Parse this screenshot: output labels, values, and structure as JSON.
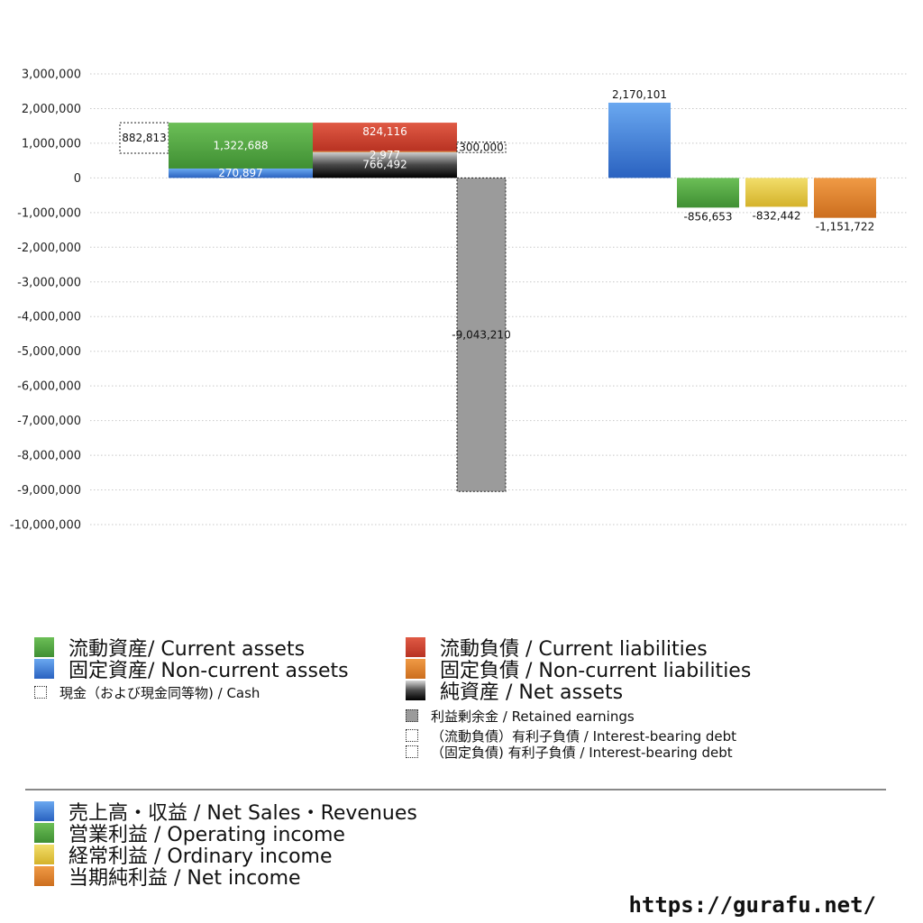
{
  "chart_data": {
    "type": "bar",
    "title": "",
    "ylim": [
      -10000000,
      3000000
    ],
    "y_ticks": [
      3000000,
      2000000,
      1000000,
      0,
      -1000000,
      -2000000,
      -3000000,
      -4000000,
      -5000000,
      -6000000,
      -7000000,
      -8000000,
      -9000000,
      -10000000
    ],
    "y_tick_labels": [
      "3,000,000",
      "2,000,000",
      "1,000,000",
      "0",
      "-1,000,000",
      "-2,000,000",
      "-3,000,000",
      "-4,000,000",
      "-5,000,000",
      "-6,000,000",
      "-7,000,000",
      "-8,000,000",
      "-9,000,000",
      "-10,000,000"
    ],
    "grid": true,
    "balance_sheet": {
      "assets": [
        {
          "key": "noncurrent_assets",
          "value": 270897,
          "label": "270,897"
        },
        {
          "key": "current_assets",
          "value": 1322688,
          "label": "1,322,688"
        }
      ],
      "cash": {
        "value": 882813,
        "label": "882,813"
      },
      "liabilities_and_equity": [
        {
          "key": "net_assets",
          "value": 766492,
          "label": "766,492"
        },
        {
          "key": "noncurrent_liabilities",
          "value": 2977,
          "label": "2,977"
        },
        {
          "key": "current_liabilities",
          "value": 824116,
          "label": "824,116"
        }
      ],
      "interest_bearing_debt": {
        "value": 300000,
        "label": "300,000"
      },
      "retained_earnings": {
        "value": -9043210,
        "label": "-9,043,210"
      }
    },
    "income_statement": [
      {
        "key": "net_sales",
        "value": 2170101,
        "label": "2,170,101"
      },
      {
        "key": "operating_income",
        "value": -856653,
        "label": "-856,653"
      },
      {
        "key": "ordinary_income",
        "value": -832442,
        "label": "-832,442"
      },
      {
        "key": "net_income",
        "value": -1151722,
        "label": "-1,151,722"
      }
    ]
  },
  "colors": {
    "current_assets": "#4a9f3c",
    "noncurrent_assets": "#3a76d0",
    "current_liabilities": "#cc3c2c",
    "noncurrent_liabilities": "#dd7f2a",
    "net_assets": "#1a1a1a",
    "retained_earnings": "#9b9b9b",
    "net_sales": "#3f82dc",
    "operating_income": "#4a9f3c",
    "ordinary_income": "#e0c23a",
    "net_income": "#dd7f2a"
  },
  "legend_bs_left": [
    {
      "label": "流動資産/ Current assets",
      "color_key": "current_assets"
    },
    {
      "label": "固定資産/ Non-current assets",
      "color_key": "noncurrent_assets"
    },
    {
      "label": "現金（および現金同等物) / Cash",
      "color_key": "dotted"
    }
  ],
  "legend_bs_right": [
    {
      "label": "流動負債 /  Current liabilities",
      "color_key": "current_liabilities"
    },
    {
      "label": "固定負債 / Non-current liabilities",
      "color_key": "noncurrent_liabilities"
    },
    {
      "label": "純資産 / Net assets",
      "color_key": "net_assets"
    },
    {
      "label": "利益剰余金 / Retained earnings",
      "color_key": "retained_earnings"
    },
    {
      "label": "（流動負債）有利子負債 / Interest-bearing debt",
      "color_key": "dotted"
    },
    {
      "label": "（固定負債) 有利子負債 / Interest-bearing debt",
      "color_key": "dotted"
    }
  ],
  "legend_pl": [
    {
      "label": "売上高・収益 / Net Sales・Revenues",
      "color_key": "net_sales"
    },
    {
      "label": "営業利益 / Operating income",
      "color_key": "operating_income"
    },
    {
      "label": "経常利益 / Ordinary income",
      "color_key": "ordinary_income"
    },
    {
      "label": "当期純利益 / Net income",
      "color_key": "net_income"
    }
  ],
  "site_url": "https://gurafu.net/"
}
